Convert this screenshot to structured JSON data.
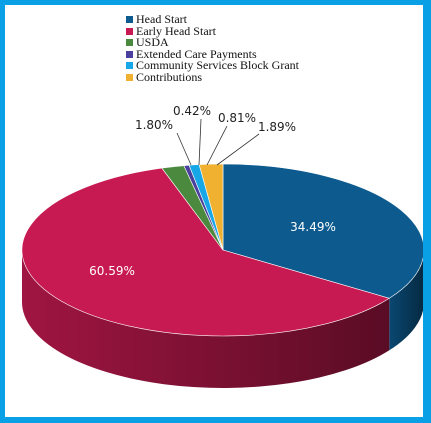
{
  "chart_data": {
    "type": "pie",
    "title": "",
    "legend_position": "top",
    "series": [
      {
        "name": "Head Start",
        "value": 34.49,
        "label": "34.49%",
        "color": "#0c5a8e"
      },
      {
        "name": "Early Head Start",
        "value": 60.59,
        "label": "60.59%",
        "color": "#c81a52"
      },
      {
        "name": "USDA",
        "value": 1.8,
        "label": "1.80%",
        "color": "#4b8a3e"
      },
      {
        "name": "Extended Care Payments",
        "value": 0.42,
        "label": "0.42%",
        "color": "#4a3f9c"
      },
      {
        "name": "Community Services Block Grant",
        "value": 0.81,
        "label": "0.81%",
        "color": "#18a7e6"
      },
      {
        "name": "Contributions",
        "value": 1.89,
        "label": "1.89%",
        "color": "#f0b030"
      }
    ]
  }
}
